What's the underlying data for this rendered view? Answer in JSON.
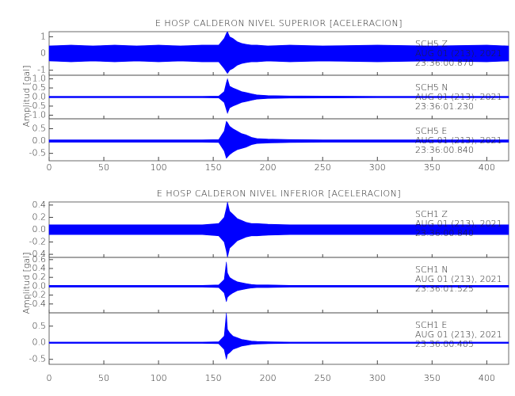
{
  "chart_data": [
    {
      "type": "area",
      "title": "E HOSP CALDERON NIVEL SUPERIOR [ACELERACION]",
      "ylabel": "Amplitud [gal]",
      "xlim": [
        0,
        420
      ],
      "xticks": [
        0,
        50,
        100,
        150,
        200,
        250,
        300,
        350,
        400
      ],
      "x": [
        0,
        20,
        40,
        60,
        80,
        100,
        120,
        140,
        155,
        160,
        162,
        163,
        165,
        168,
        172,
        176,
        180,
        185,
        190,
        200,
        220,
        250,
        300,
        350,
        400,
        420
      ],
      "panels": [
        {
          "ylim": [
            -1.3,
            1.3
          ],
          "yticks": [
            -1,
            0,
            1
          ],
          "annotations": [
            "SCH5   Z",
            "AUG 01 (213), 2021",
            "23:36:00.870"
          ],
          "series": [
            {
              "color": "#0000ff",
              "high": [
                0.45,
                0.5,
                0.45,
                0.5,
                0.45,
                0.5,
                0.45,
                0.5,
                0.5,
                0.9,
                1.2,
                1.3,
                1.0,
                0.9,
                0.7,
                0.6,
                0.55,
                0.5,
                0.5,
                0.45,
                0.5,
                0.45,
                0.5,
                0.45,
                0.5,
                0.45
              ],
              "low": [
                -0.45,
                -0.5,
                -0.45,
                -0.5,
                -0.45,
                -0.5,
                -0.45,
                -0.5,
                -0.5,
                -0.9,
                -1.1,
                -1.2,
                -1.0,
                -0.9,
                -0.7,
                -0.6,
                -0.55,
                -0.5,
                -0.5,
                -0.45,
                -0.5,
                -0.45,
                -0.5,
                -0.45,
                -0.5,
                -0.45
              ]
            }
          ]
        },
        {
          "ylim": [
            -1.2,
            1.2
          ],
          "yticks": [
            {
              "value": -1,
              "label": "-1.0"
            },
            -0.5,
            {
              "value": 0,
              "label": "0.0"
            },
            0.5,
            {
              "value": 1,
              "label": "1.0"
            }
          ],
          "annotations": [
            "SCH5   N",
            "AUG 01 (213), 2021",
            "23:36:01.230"
          ],
          "series": [
            {
              "color": "#0000ff",
              "high": [
                0.04,
                0.04,
                0.04,
                0.04,
                0.04,
                0.04,
                0.04,
                0.04,
                0.05,
                0.3,
                0.8,
                1.0,
                0.6,
                0.5,
                0.4,
                0.3,
                0.25,
                0.18,
                0.12,
                0.08,
                0.06,
                0.05,
                0.04,
                0.04,
                0.04,
                0.04
              ],
              "low": [
                -0.04,
                -0.04,
                -0.04,
                -0.04,
                -0.04,
                -0.04,
                -0.04,
                -0.04,
                -0.05,
                -0.3,
                -0.7,
                -0.9,
                -0.6,
                -0.5,
                -0.4,
                -0.3,
                -0.25,
                -0.18,
                -0.12,
                -0.08,
                -0.06,
                -0.05,
                -0.04,
                -0.04,
                -0.04,
                -0.04
              ]
            }
          ]
        },
        {
          "ylim": [
            -0.8,
            0.9
          ],
          "yticks": [
            -0.5,
            {
              "value": 0,
              "label": "0.0"
            },
            0.5
          ],
          "annotations": [
            "SCH5   E",
            "AUG 01 (213), 2021",
            "23:36:00.840"
          ],
          "series": [
            {
              "color": "#0000ff",
              "high": [
                0.05,
                0.05,
                0.05,
                0.05,
                0.05,
                0.05,
                0.05,
                0.05,
                0.06,
                0.4,
                0.8,
                0.75,
                0.6,
                0.5,
                0.4,
                0.3,
                0.25,
                0.15,
                0.1,
                0.08,
                0.06,
                0.05,
                0.05,
                0.05,
                0.05,
                0.05
              ],
              "low": [
                -0.05,
                -0.05,
                -0.05,
                -0.05,
                -0.05,
                -0.05,
                -0.05,
                -0.05,
                -0.06,
                -0.4,
                -0.7,
                -0.65,
                -0.55,
                -0.45,
                -0.35,
                -0.3,
                -0.25,
                -0.15,
                -0.1,
                -0.08,
                -0.06,
                -0.05,
                -0.05,
                -0.05,
                -0.05,
                -0.05
              ]
            }
          ]
        }
      ]
    },
    {
      "type": "area",
      "title": "E HOSP CALDERON NIVEL INFERIOR [ACELERACION]",
      "ylabel": "Amplitud [gal]",
      "xlim": [
        0,
        420
      ],
      "xticks": [
        0,
        50,
        100,
        150,
        200,
        250,
        300,
        350,
        400
      ],
      "x": [
        0,
        20,
        40,
        60,
        80,
        100,
        120,
        140,
        155,
        160,
        162,
        163,
        165,
        168,
        172,
        176,
        180,
        185,
        190,
        200,
        220,
        250,
        300,
        350,
        400,
        420
      ],
      "panels": [
        {
          "ylim": [
            -0.45,
            0.45
          ],
          "yticks": [
            -0.4,
            -0.2,
            {
              "value": 0,
              "label": "0.0"
            },
            0.2,
            0.4
          ],
          "annotations": [
            "SCH1   Z",
            "AUG 01 (213), 2021",
            "23:36:00.840"
          ],
          "series": [
            {
              "color": "#0000ff",
              "high": [
                0.08,
                0.08,
                0.08,
                0.08,
                0.08,
                0.08,
                0.08,
                0.08,
                0.1,
                0.2,
                0.35,
                0.45,
                0.3,
                0.25,
                0.18,
                0.15,
                0.12,
                0.1,
                0.1,
                0.09,
                0.08,
                0.08,
                0.08,
                0.08,
                0.08,
                0.08
              ],
              "low": [
                -0.08,
                -0.08,
                -0.08,
                -0.08,
                -0.08,
                -0.08,
                -0.08,
                -0.08,
                -0.1,
                -0.2,
                -0.35,
                -0.45,
                -0.3,
                -0.25,
                -0.18,
                -0.15,
                -0.12,
                -0.1,
                -0.1,
                -0.09,
                -0.08,
                -0.08,
                -0.08,
                -0.08,
                -0.08,
                -0.08
              ]
            }
          ]
        },
        {
          "ylim": [
            -0.6,
            0.65
          ],
          "yticks": [
            -0.4,
            -0.2,
            {
              "value": 0,
              "label": "0.0"
            },
            0.2,
            0.4,
            0.6
          ],
          "annotations": [
            "SCH1   N",
            "AUG 01 (213), 2021",
            "23:36:01.525"
          ],
          "series": [
            {
              "color": "#0000ff",
              "high": [
                0.02,
                0.02,
                0.02,
                0.02,
                0.02,
                0.02,
                0.02,
                0.02,
                0.03,
                0.15,
                0.55,
                0.3,
                0.2,
                0.15,
                0.1,
                0.08,
                0.06,
                0.04,
                0.03,
                0.03,
                0.02,
                0.02,
                0.02,
                0.02,
                0.02,
                0.02
              ],
              "low": [
                -0.02,
                -0.02,
                -0.02,
                -0.02,
                -0.02,
                -0.02,
                -0.02,
                -0.02,
                -0.03,
                -0.15,
                -0.35,
                -0.25,
                -0.2,
                -0.15,
                -0.1,
                -0.08,
                -0.06,
                -0.04,
                -0.03,
                -0.03,
                -0.02,
                -0.02,
                -0.02,
                -0.02,
                -0.02,
                -0.02
              ]
            }
          ]
        },
        {
          "ylim": [
            -0.65,
            0.9
          ],
          "yticks": [
            -0.5,
            {
              "value": 0,
              "label": "0.0"
            },
            0.5
          ],
          "annotations": [
            "SCH1   E",
            "AUG 01 (213), 2021",
            "23:36:00.405"
          ],
          "series": [
            {
              "color": "#0000ff",
              "high": [
                0.02,
                0.02,
                0.02,
                0.02,
                0.02,
                0.02,
                0.02,
                0.02,
                0.03,
                0.2,
                0.9,
                0.4,
                0.3,
                0.2,
                0.15,
                0.1,
                0.08,
                0.05,
                0.04,
                0.03,
                0.02,
                0.02,
                0.02,
                0.02,
                0.02,
                0.02
              ],
              "low": [
                -0.02,
                -0.02,
                -0.02,
                -0.02,
                -0.02,
                -0.02,
                -0.02,
                -0.02,
                -0.03,
                -0.2,
                -0.5,
                -0.35,
                -0.3,
                -0.2,
                -0.15,
                -0.1,
                -0.08,
                -0.05,
                -0.04,
                -0.03,
                -0.02,
                -0.02,
                -0.02,
                -0.02,
                -0.02,
                -0.02
              ]
            }
          ]
        }
      ]
    }
  ]
}
